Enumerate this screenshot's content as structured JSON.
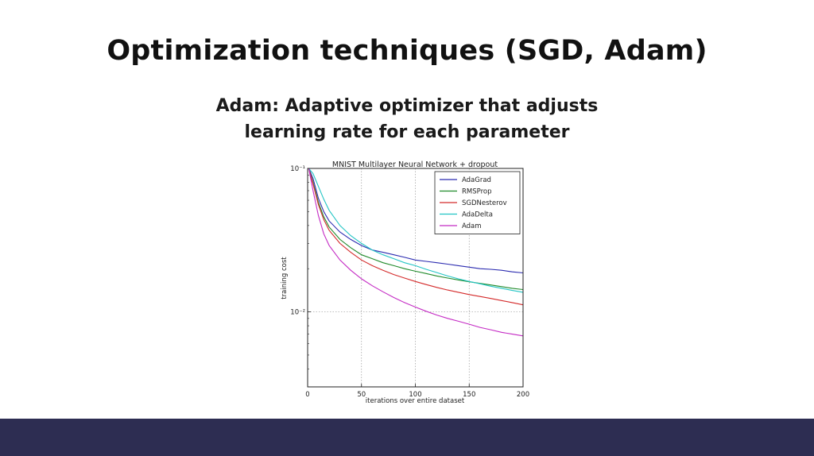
{
  "slide": {
    "title": "Optimization techniques (SGD, Adam)",
    "subtitle_line1": "Adam: Adaptive optimizer that adjusts",
    "subtitle_line2": "learning rate for each parameter",
    "footer_color": "#2d2d52"
  },
  "chart_data": {
    "type": "line",
    "title": "MNIST Multilayer Neural Network + dropout",
    "xlabel": "iterations over entire dataset",
    "ylabel": "training cost",
    "xlim": [
      0,
      200
    ],
    "ylim": [
      0.003,
      0.1
    ],
    "yscale": "log",
    "grid": true,
    "legend": "top-right",
    "x_ticks": [
      "0",
      "50",
      "100",
      "150",
      "200"
    ],
    "y_ticks": [
      {
        "value": 0.1,
        "label": "10⁻¹"
      },
      {
        "value": 0.01,
        "label": "10⁻²"
      }
    ],
    "x": [
      1,
      5,
      10,
      15,
      20,
      30,
      40,
      50,
      60,
      70,
      80,
      90,
      100,
      110,
      120,
      130,
      140,
      150,
      160,
      170,
      180,
      190,
      200
    ],
    "series": [
      {
        "name": "AdaGrad",
        "color": "#2b2bb0",
        "values": [
          0.1,
          0.085,
          0.062,
          0.05,
          0.043,
          0.036,
          0.032,
          0.029,
          0.027,
          0.026,
          0.025,
          0.024,
          0.023,
          0.0225,
          0.022,
          0.0215,
          0.021,
          0.0205,
          0.02,
          0.0198,
          0.0195,
          0.019,
          0.0187
        ]
      },
      {
        "name": "RMSProp",
        "color": "#1f8a2a",
        "values": [
          0.1,
          0.08,
          0.058,
          0.046,
          0.039,
          0.032,
          0.028,
          0.025,
          0.0235,
          0.022,
          0.021,
          0.02,
          0.0192,
          0.0185,
          0.0178,
          0.0172,
          0.0167,
          0.0162,
          0.0158,
          0.0154,
          0.015,
          0.0146,
          0.0143
        ]
      },
      {
        "name": "SGDNesterov",
        "color": "#d42a2a",
        "values": [
          0.1,
          0.078,
          0.056,
          0.044,
          0.037,
          0.03,
          0.026,
          0.023,
          0.021,
          0.0195,
          0.0182,
          0.0172,
          0.0163,
          0.0155,
          0.0148,
          0.0142,
          0.0137,
          0.0132,
          0.0128,
          0.0124,
          0.012,
          0.0116,
          0.0112
        ]
      },
      {
        "name": "AdaDelta",
        "color": "#22c4c4",
        "values": [
          0.1,
          0.092,
          0.075,
          0.061,
          0.051,
          0.04,
          0.034,
          0.03,
          0.027,
          0.025,
          0.0235,
          0.022,
          0.021,
          0.0198,
          0.0188,
          0.0178,
          0.017,
          0.0163,
          0.0157,
          0.0151,
          0.0146,
          0.0141,
          0.0137
        ]
      },
      {
        "name": "Adam",
        "color": "#c42ac4",
        "values": [
          0.1,
          0.07,
          0.047,
          0.035,
          0.029,
          0.023,
          0.0195,
          0.017,
          0.0152,
          0.0138,
          0.0126,
          0.0116,
          0.0108,
          0.0101,
          0.0095,
          0.009,
          0.0086,
          0.0082,
          0.0078,
          0.0075,
          0.0072,
          0.007,
          0.0068
        ]
      }
    ]
  }
}
